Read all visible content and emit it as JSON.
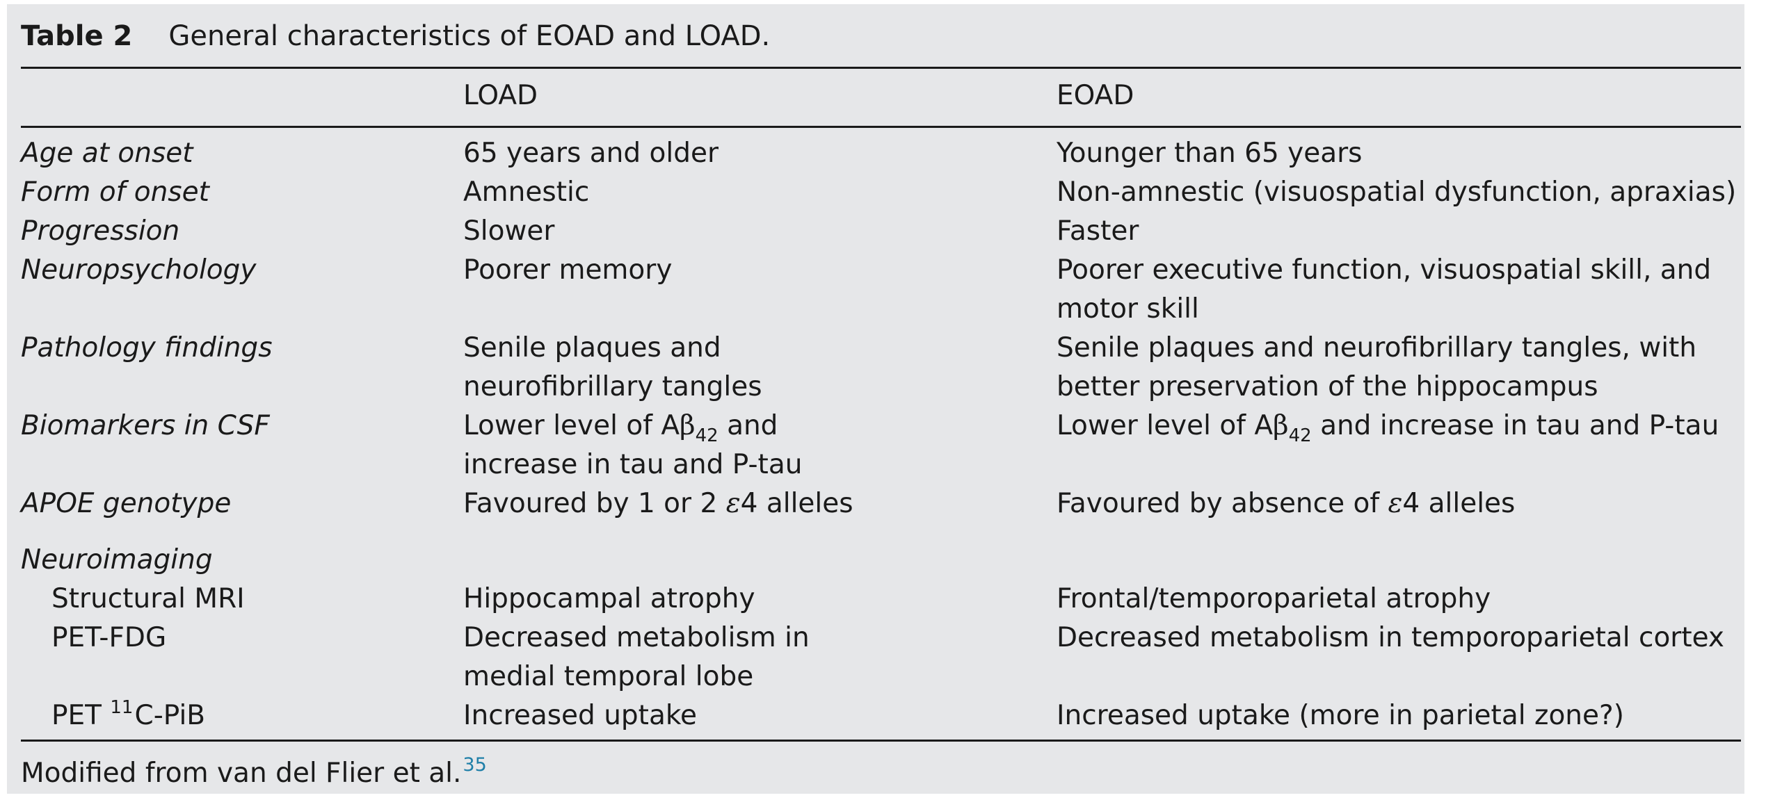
{
  "caption": {
    "label": "Table 2",
    "title": "General characteristics of EOAD and LOAD."
  },
  "header": {
    "col1": "",
    "col2": "LOAD",
    "col3": "EOAD"
  },
  "rows": [
    {
      "label": "Age at onset",
      "load": [
        "65 years and older"
      ],
      "eoad": [
        "Younger than 65 years"
      ]
    },
    {
      "label": "Form of onset",
      "load": [
        "Amnestic"
      ],
      "eoad": [
        "Non-amnestic (visuospatial dysfunction, apraxias)"
      ]
    },
    {
      "label": "Progression",
      "load": [
        "Slower"
      ],
      "eoad": [
        "Faster"
      ]
    },
    {
      "label": "Neuropsychology",
      "load": [
        "Poorer memory"
      ],
      "eoad": [
        "Poorer executive function, visuospatial skill, and",
        "motor skill"
      ]
    },
    {
      "label": "Pathology findings",
      "load": [
        "Senile plaques and",
        "neurofibrillary tangles"
      ],
      "eoad": [
        "Senile plaques and neurofibrillary tangles, with",
        "better preservation of the hippocampus"
      ]
    },
    {
      "label": "Biomarkers in CSF",
      "load": {
        "l1_pre": "Lower level of A",
        "beta": "β",
        "sub": "42",
        "l1_post": " and",
        "l2": "increase in tau and P-tau"
      },
      "eoad": {
        "pre": "Lower level of A",
        "beta": "β",
        "sub": "42",
        "post": " and increase in tau and P-tau"
      }
    },
    {
      "label": "APOE genotype",
      "load": {
        "pre": "Favoured by 1 or 2 ",
        "eps": "ε",
        "post": "4 alleles"
      },
      "eoad": {
        "pre": "Favoured by absence of ",
        "eps": "ε",
        "post": "4 alleles"
      }
    },
    {
      "label": "Neuroimaging"
    },
    {
      "label": "Structural MRI",
      "load": [
        "Hippocampal atrophy"
      ],
      "eoad": [
        "Frontal/temporoparietal atrophy"
      ]
    },
    {
      "label": "PET-FDG",
      "load": [
        "Decreased metabolism in",
        "medial temporal lobe"
      ],
      "eoad": [
        "Decreased metabolism in temporoparietal cortex"
      ]
    },
    {
      "label_pre": "PET ",
      "label_sup": "11",
      "label_post": "C-PiB",
      "load": [
        "Increased uptake"
      ],
      "eoad": [
        "Increased uptake (more in parietal zone?)"
      ]
    }
  ],
  "footnote": {
    "text": "Modified from van del Flier et al.",
    "ref": "35"
  },
  "colors": {
    "background": "#e6e7e9",
    "text": "#1a1a1a",
    "rule": "#1a1a1a",
    "reference_link": "#1f7fa8"
  }
}
